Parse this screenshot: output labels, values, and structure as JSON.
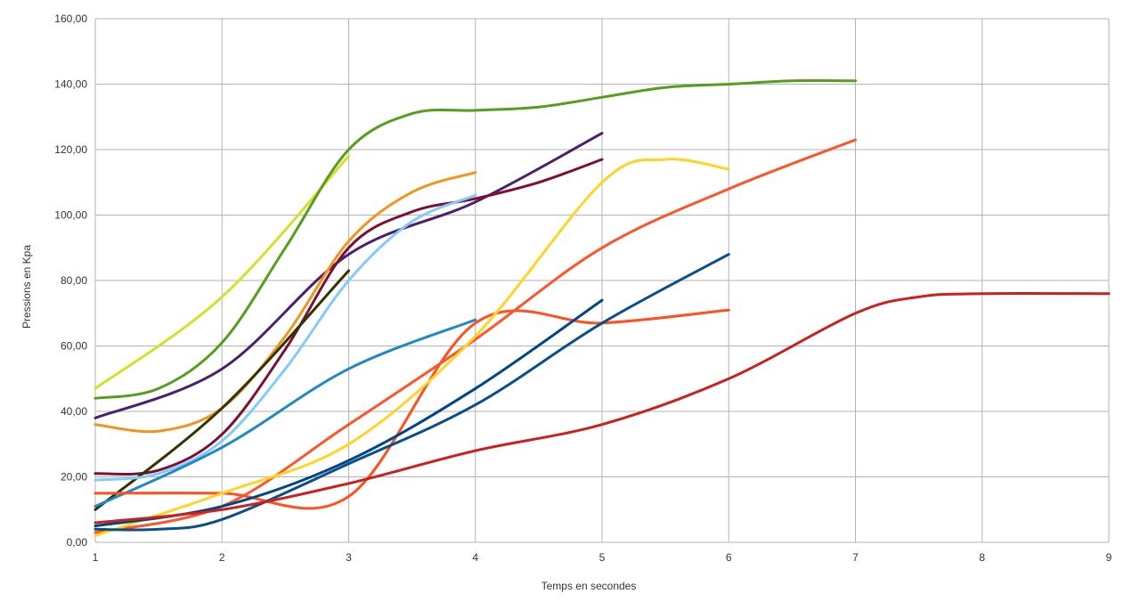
{
  "chart_data": {
    "type": "line",
    "title": "",
    "xlabel": "Temps en secondes",
    "ylabel": "Pressions en Kpa",
    "xlim": [
      1,
      9
    ],
    "ylim": [
      0,
      160
    ],
    "x_ticks": [
      "1",
      "2",
      "3",
      "4",
      "5",
      "6",
      "7",
      "8",
      "9"
    ],
    "y_ticks": [
      "0,00",
      "20,00",
      "40,00",
      "60,00",
      "80,00",
      "100,00",
      "120,00",
      "140,00",
      "160,00"
    ],
    "grid": true,
    "legend": "none",
    "series": [
      {
        "color": "#d4e02a",
        "x": [
          1,
          2,
          3
        ],
        "y": [
          47,
          75,
          118
        ]
      },
      {
        "color": "#579d1c",
        "x": [
          1,
          1.5,
          2,
          2.5,
          3,
          3.5,
          4,
          4.5,
          5,
          5.5,
          6,
          6.5,
          7
        ],
        "y": [
          44,
          47,
          61,
          90,
          120,
          131,
          132,
          133,
          136,
          139,
          140,
          141,
          141
        ]
      },
      {
        "color": "#4b1f6f",
        "x": [
          1,
          2,
          3,
          4,
          5
        ],
        "y": [
          38,
          53,
          88,
          104,
          125
        ]
      },
      {
        "color": "#f0961e",
        "x": [
          1,
          1.5,
          2,
          2.5,
          3,
          3.5,
          4
        ],
        "y": [
          36,
          34,
          41,
          63,
          92,
          107,
          113
        ]
      },
      {
        "color": "#7d0f33",
        "x": [
          1,
          1.5,
          2,
          2.5,
          3,
          3.5,
          4,
          4.5,
          5
        ],
        "y": [
          21,
          22,
          33,
          59,
          90,
          101,
          105,
          110,
          117
        ]
      },
      {
        "color": "#333300",
        "x": [
          1,
          2,
          3
        ],
        "y": [
          10,
          41,
          83
        ]
      },
      {
        "color": "#83caff",
        "x": [
          1,
          1.5,
          2,
          2.5,
          3,
          3.5,
          4
        ],
        "y": [
          19,
          21,
          31,
          53,
          80,
          98,
          106
        ]
      },
      {
        "color": "#1f89c5",
        "x": [
          1,
          2,
          3,
          4
        ],
        "y": [
          11,
          29,
          53,
          68
        ]
      },
      {
        "color": "#ff5020",
        "x": [
          1,
          2,
          3,
          4,
          5,
          6
        ],
        "y": [
          15,
          15,
          14,
          67,
          67,
          71
        ]
      },
      {
        "color": "#ff5429",
        "x": [
          1,
          2,
          3,
          4,
          5,
          6,
          7
        ],
        "y": [
          3,
          11,
          36,
          62,
          90,
          108,
          123
        ]
      },
      {
        "color": "#ffd426",
        "x": [
          1,
          2,
          3,
          4,
          5,
          5.5,
          6
        ],
        "y": [
          2,
          15,
          30,
          63,
          110,
          117,
          114
        ]
      },
      {
        "color": "#004586",
        "x": [
          1,
          2,
          3,
          4,
          5
        ],
        "y": [
          5,
          11,
          25,
          47,
          74
        ]
      },
      {
        "color": "#0a4e8a",
        "x": [
          1,
          1.5,
          2,
          3,
          4,
          5,
          6
        ],
        "y": [
          4,
          4,
          7,
          24,
          42,
          67,
          88
        ]
      },
      {
        "color": "#c9211e",
        "x": [
          1,
          2,
          3,
          4,
          5,
          6,
          7,
          7.5,
          8,
          9
        ],
        "y": [
          6,
          10,
          18,
          28,
          36,
          50,
          70,
          75,
          76,
          76
        ]
      }
    ]
  }
}
